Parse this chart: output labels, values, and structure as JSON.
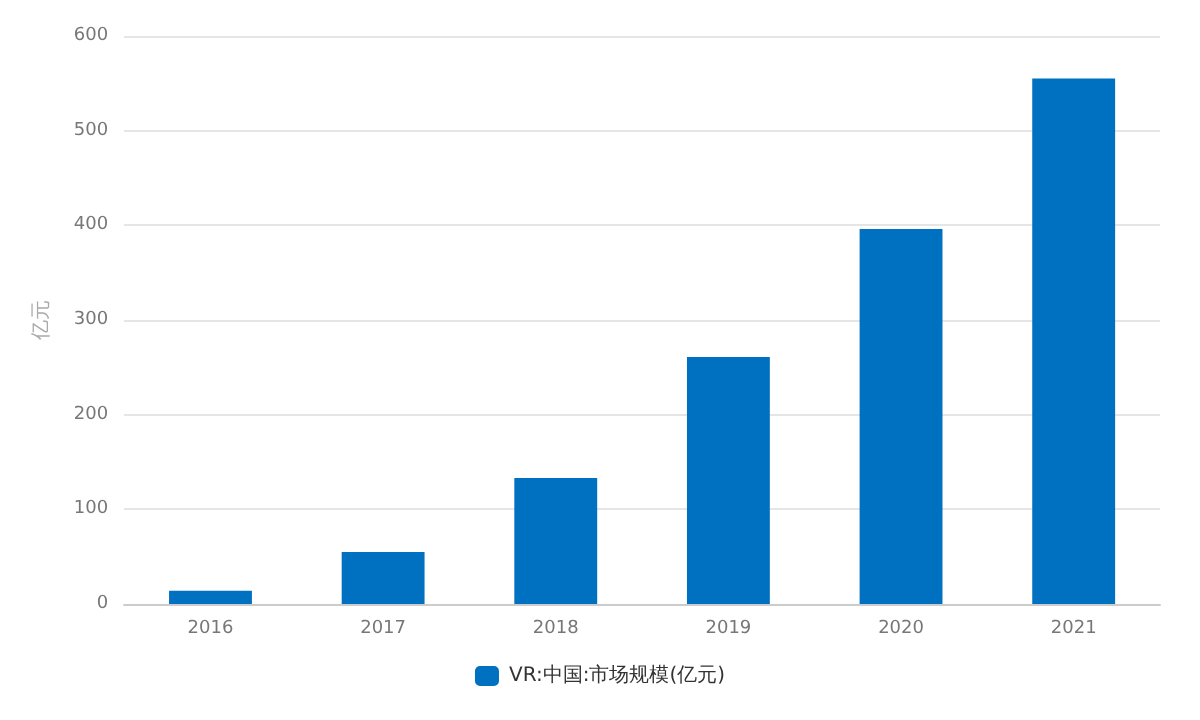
{
  "chart_data": {
    "type": "bar",
    "ylabel": "亿元",
    "categories": [
      "2016",
      "2017",
      "2018",
      "2019",
      "2020",
      "2021"
    ],
    "series": [
      {
        "name": "VR:中国:市场规模(亿元)",
        "color": "#0070c0",
        "values": [
          14,
          55,
          133,
          261,
          396,
          555
        ]
      }
    ],
    "ylim": [
      0,
      600
    ],
    "yticks": [
      0,
      100,
      200,
      300,
      400,
      500,
      600
    ],
    "grid": "y",
    "legend": "bottom"
  }
}
